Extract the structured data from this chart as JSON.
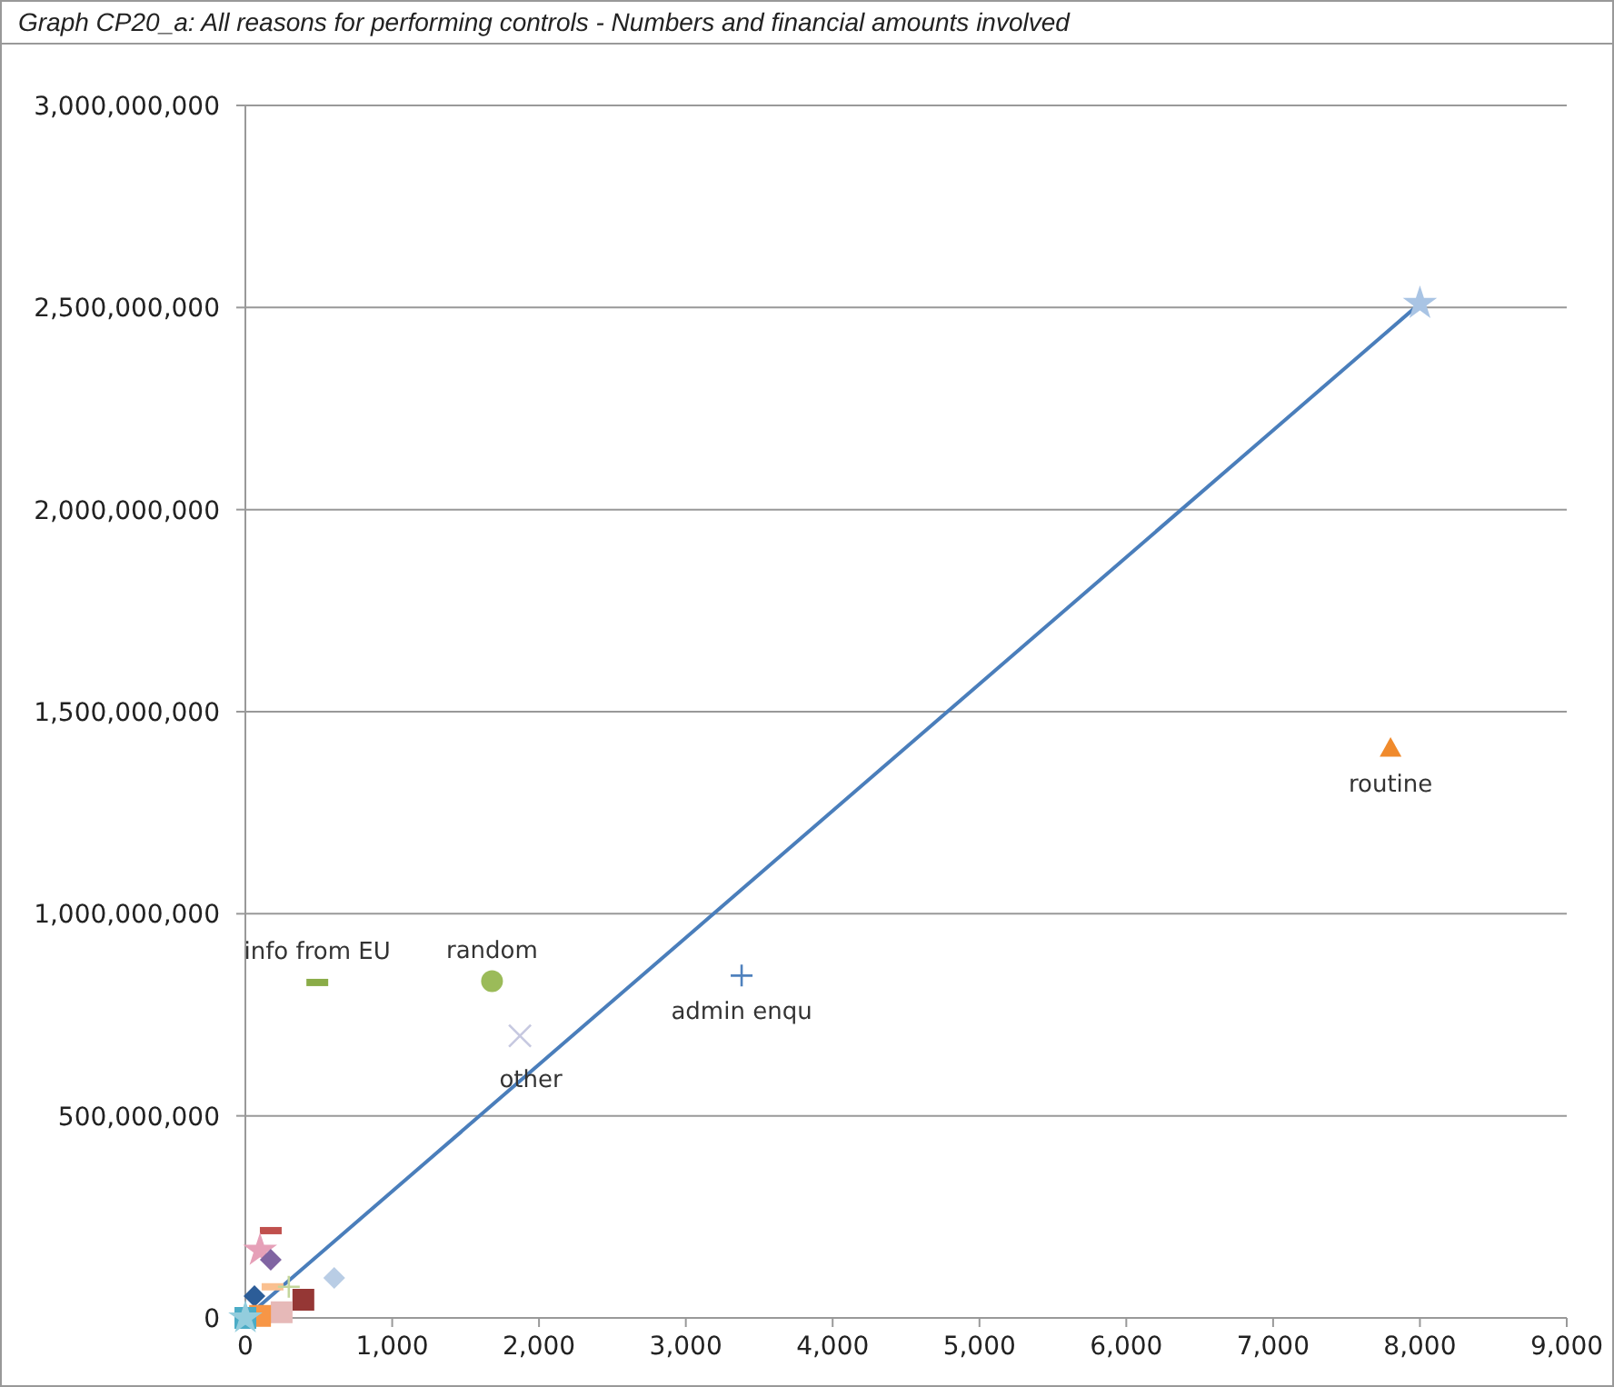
{
  "chart_data": {
    "type": "scatter",
    "title": "Graph CP20_a: All reasons for performing controls - Numbers and financial amounts involved",
    "xlim": [
      0,
      9000
    ],
    "ylim": [
      0,
      3000000000
    ],
    "xticks": [
      0,
      {
        "value": 1000,
        "label": "1,000"
      },
      {
        "value": 2000,
        "label": "2,000"
      },
      {
        "value": 3000,
        "label": "3,000"
      },
      {
        "value": 4000,
        "label": "4,000"
      },
      {
        "value": 5000,
        "label": "5,000"
      },
      {
        "value": 6000,
        "label": "6,000"
      },
      {
        "value": 7000,
        "label": "7,000"
      },
      {
        "value": 8000,
        "label": "8,000"
      },
      {
        "value": 9000,
        "label": "9,000"
      }
    ],
    "yticks": [
      0,
      {
        "value": 500000000,
        "label": "500,000,000"
      },
      {
        "value": 1000000000,
        "label": "1,000,000,000"
      },
      {
        "value": 1500000000,
        "label": "1,500,000,000"
      },
      {
        "value": 2000000000,
        "label": "2,000,000,000"
      },
      {
        "value": 2500000000,
        "label": "2,500,000,000"
      },
      {
        "value": 3000000000,
        "label": "3,000,000,000"
      }
    ],
    "grid": "y",
    "legend": false,
    "series": [
      {
        "type": "line",
        "color": "#4a7ebb",
        "x": [
          50,
          8000
        ],
        "values": [
          15000000,
          2510000000
        ],
        "marker": "none",
        "line_style": "solid"
      },
      {
        "color": "#a9c4e4",
        "x": [
          8000
        ],
        "values": [
          2510000000
        ],
        "marker": "star"
      },
      {
        "name": "routine",
        "color": "#f08a2c",
        "x": [
          7800
        ],
        "values": [
          1410000000
        ],
        "marker": "triangle"
      },
      {
        "name": "random",
        "color": "#9bbb59",
        "x": [
          1680
        ],
        "values": [
          833000000
        ],
        "marker": "circle"
      },
      {
        "name": "info from EU",
        "color": "#8aac48",
        "x": [
          490
        ],
        "values": [
          830000000
        ],
        "marker": "square"
      },
      {
        "name": "admin enqu",
        "color": "#4f81bd",
        "x": [
          3380
        ],
        "values": [
          847000000
        ],
        "marker": "cross"
      },
      {
        "name": "other",
        "color": "#c6c8e0",
        "x": [
          1870
        ],
        "values": [
          698000000
        ],
        "marker": "x"
      },
      {
        "color": "#c0504d",
        "x": [
          173
        ],
        "values": [
          216000000
        ],
        "marker": "square"
      },
      {
        "color": "#e6a0b8",
        "x": [
          100
        ],
        "values": [
          167000000
        ],
        "marker": "star"
      },
      {
        "color": "#8064a2",
        "x": [
          173
        ],
        "values": [
          144000000
        ],
        "marker": "diamond"
      },
      {
        "color": "#b9cde5",
        "x": [
          605
        ],
        "values": [
          99000000
        ],
        "marker": "diamond"
      },
      {
        "color": "#fac090",
        "x": [
          185
        ],
        "values": [
          77000000
        ],
        "marker": "square"
      },
      {
        "color": "#c3d69b",
        "x": [
          296
        ],
        "values": [
          77000000
        ],
        "marker": "cross"
      },
      {
        "color": "#953735",
        "x": [
          395
        ],
        "values": [
          45000000
        ],
        "marker": "square"
      },
      {
        "color": "#2c5d98",
        "x": [
          62
        ],
        "values": [
          54000000
        ],
        "marker": "diamond"
      },
      {
        "color": "#e6b9b8",
        "x": [
          247
        ],
        "values": [
          14000000
        ],
        "marker": "square"
      },
      {
        "color": "#f79646",
        "x": [
          100
        ],
        "values": [
          5000000
        ],
        "marker": "square"
      },
      {
        "color": "#4bacc6",
        "x": [
          0
        ],
        "values": [
          0
        ],
        "marker": "square"
      },
      {
        "color": "#93cddd",
        "x": [
          0
        ],
        "values": [
          0
        ],
        "marker": "star"
      }
    ]
  }
}
